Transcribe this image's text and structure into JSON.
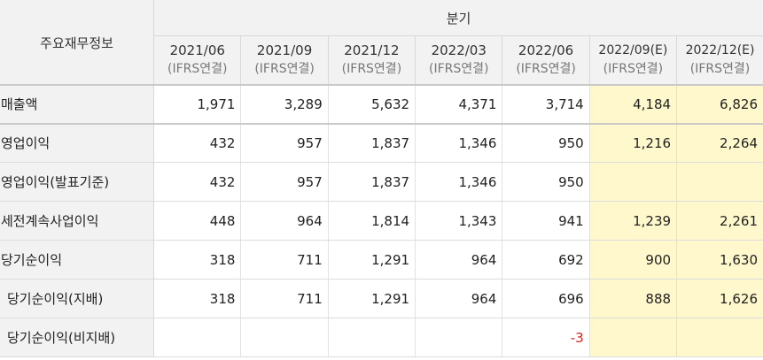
{
  "corner_label": "주요재무정보",
  "group_label": "분기",
  "columns": [
    {
      "period": "2021/06",
      "basis": "(IFRS연결)",
      "estimate": false
    },
    {
      "period": "2021/09",
      "basis": "(IFRS연결)",
      "estimate": false
    },
    {
      "period": "2021/12",
      "basis": "(IFRS연결)",
      "estimate": false
    },
    {
      "period": "2022/03",
      "basis": "(IFRS연결)",
      "estimate": false
    },
    {
      "period": "2022/06",
      "basis": "(IFRS연결)",
      "estimate": false
    },
    {
      "period": "2022/09(E)",
      "basis": "(IFRS연결)",
      "estimate": true
    },
    {
      "period": "2022/12(E)",
      "basis": "(IFRS연결)",
      "estimate": true
    }
  ],
  "rows": [
    {
      "label": "매출액",
      "indent": false,
      "values": [
        "1,971",
        "3,289",
        "5,632",
        "4,371",
        "3,714",
        "4,184",
        "6,826"
      ]
    },
    {
      "label": "영업이익",
      "indent": false,
      "values": [
        "432",
        "957",
        "1,837",
        "1,346",
        "950",
        "1,216",
        "2,264"
      ]
    },
    {
      "label": "영업이익(발표기준)",
      "indent": false,
      "values": [
        "432",
        "957",
        "1,837",
        "1,346",
        "950",
        "",
        ""
      ]
    },
    {
      "label": "세전계속사업이익",
      "indent": false,
      "values": [
        "448",
        "964",
        "1,814",
        "1,343",
        "941",
        "1,239",
        "2,261"
      ]
    },
    {
      "label": "당기순이익",
      "indent": false,
      "values": [
        "318",
        "711",
        "1,291",
        "964",
        "692",
        "900",
        "1,630"
      ]
    },
    {
      "label": "당기순이익(지배)",
      "indent": true,
      "values": [
        "318",
        "711",
        "1,291",
        "964",
        "696",
        "888",
        "1,626"
      ]
    },
    {
      "label": "당기순이익(비지배)",
      "indent": true,
      "values": [
        "",
        "",
        "",
        "",
        "-3",
        "",
        ""
      ]
    }
  ],
  "colors": {
    "header_bg": "#f2f2f2",
    "estimate_bg": "#fff8cc",
    "negative": "#d0271f"
  }
}
